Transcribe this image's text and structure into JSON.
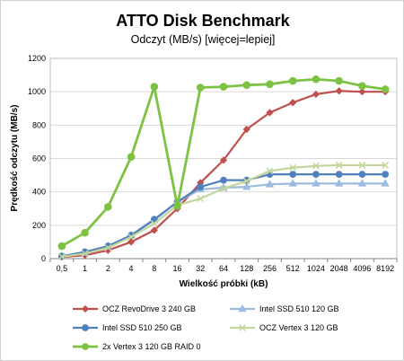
{
  "chart_data": {
    "type": "line",
    "title": "ATTO Disk Benchmark",
    "subtitle": "Odczyt (MB/s) [więcej=lepiej]",
    "xlabel": "Wielkość próbki (kB)",
    "ylabel": "Prędkość odczytu (MB/s)",
    "categories": [
      "0,5",
      "1",
      "2",
      "4",
      "8",
      "16",
      "32",
      "64",
      "128",
      "256",
      "512",
      "1024",
      "2048",
      "4096",
      "8192"
    ],
    "ylim": [
      0,
      1200
    ],
    "yticks": [
      0,
      200,
      400,
      600,
      800,
      1000,
      1200
    ],
    "grid": true,
    "legend_position": "bottom",
    "series": [
      {
        "name": "OCZ RevoDrive 3 240 GB",
        "color": "#c0504d",
        "marker": "diamond",
        "values": [
          10,
          20,
          50,
          100,
          170,
          300,
          455,
          590,
          775,
          875,
          935,
          985,
          1005,
          1000,
          1000
        ]
      },
      {
        "name": "Intel SSD 510 120 GB",
        "color": "#9bbbe0",
        "marker": "triangle",
        "values": [
          15,
          35,
          75,
          140,
          230,
          340,
          415,
          425,
          430,
          445,
          450,
          450,
          450,
          450,
          450
        ]
      },
      {
        "name": "Intel SSD 510 250 GB",
        "color": "#4f81bd",
        "marker": "circle",
        "values": [
          15,
          40,
          75,
          140,
          235,
          340,
          430,
          470,
          470,
          505,
          505,
          505,
          505,
          505,
          505
        ]
      },
      {
        "name": "OCZ Vertex 3 120 GB",
        "color": "#c3d69b",
        "marker": "x",
        "values": [
          12,
          30,
          65,
          130,
          210,
          320,
          360,
          420,
          465,
          525,
          545,
          555,
          560,
          560,
          560
        ]
      },
      {
        "name": "2x Vertex 3 120 GB RAID 0",
        "color": "#7dc242",
        "marker": "circle",
        "values": [
          75,
          155,
          310,
          610,
          1030,
          315,
          1025,
          1030,
          1040,
          1045,
          1065,
          1075,
          1065,
          1035,
          1015
        ]
      }
    ]
  }
}
